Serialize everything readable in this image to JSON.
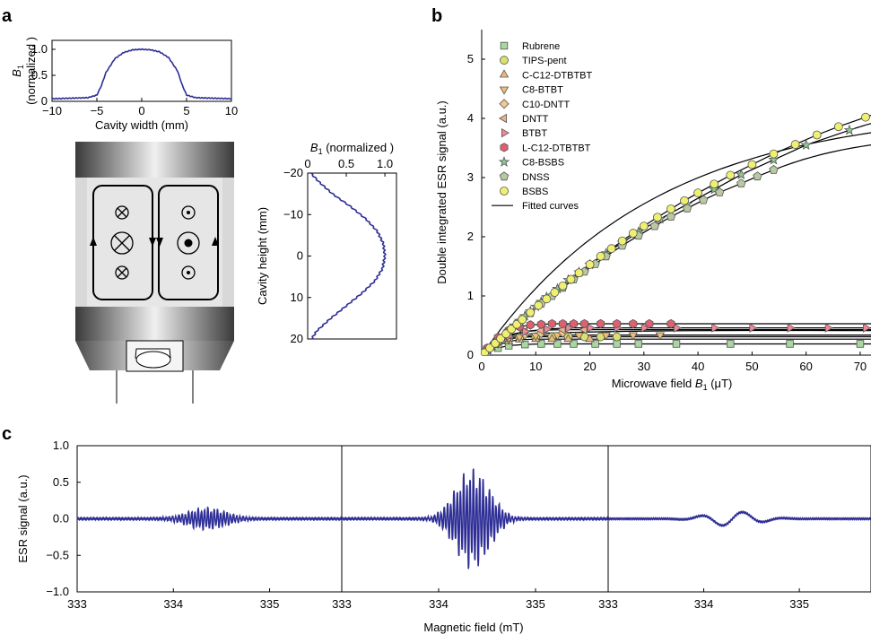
{
  "chart_data": [
    {
      "panel": "a",
      "type": "line",
      "id": "a-top",
      "xlabel": "Cavity width (mm)",
      "ylabel_main": "B",
      "ylabel_sub": "1",
      "ylabel_line2": "(normalized )",
      "xlim": [
        -10,
        10
      ],
      "ylim": [
        0,
        1
      ],
      "xticks": [
        -10,
        -5,
        0,
        5,
        10
      ],
      "yticks": [
        0,
        0.5,
        1.0
      ],
      "ytick_labels": [
        "0",
        "0.5",
        "1.0"
      ],
      "x": [
        -10,
        -8,
        -6,
        -5,
        -4.5,
        -4,
        -3,
        -2,
        -1,
        0,
        1,
        2,
        3,
        4,
        4.5,
        5,
        6,
        8,
        10
      ],
      "y": [
        0.05,
        0.06,
        0.07,
        0.12,
        0.3,
        0.55,
        0.82,
        0.94,
        0.99,
        1.0,
        0.99,
        0.95,
        0.84,
        0.58,
        0.32,
        0.12,
        0.07,
        0.06,
        0.05
      ]
    },
    {
      "panel": "a",
      "type": "line",
      "id": "a-side",
      "xlabel_main": "B",
      "xlabel_sub": "1",
      "xlabel_rest": " (normalized )",
      "ylabel": "Cavity height (mm)",
      "xlim": [
        0,
        1.15
      ],
      "ylim": [
        -20,
        20
      ],
      "xticks": [
        0,
        0.5,
        1.0
      ],
      "xtick_labels": [
        "0",
        "0.5",
        "1.0"
      ],
      "yticks": [
        -20,
        -10,
        0,
        10,
        20
      ],
      "ytick_labels": [
        "-20",
        "-10",
        "0",
        "10",
        "20"
      ],
      "height": [
        -20,
        -18,
        -15,
        -12,
        -9,
        -6,
        -3,
        0,
        3,
        6,
        9,
        12,
        15,
        18,
        20
      ],
      "value": [
        0.04,
        0.14,
        0.32,
        0.55,
        0.75,
        0.9,
        0.98,
        1.0,
        0.97,
        0.87,
        0.7,
        0.5,
        0.3,
        0.12,
        0.05
      ]
    },
    {
      "panel": "b",
      "type": "scatter",
      "id": "b",
      "xlabel_main": "Microwave field ",
      "xlabel_var": "B",
      "xlabel_sub": "1",
      "xlabel_unit": " (μT)",
      "ylabel": "Double integrated ESR signal (a.u.)",
      "xlim": [
        0,
        72
      ],
      "ylim": [
        0,
        5.5
      ],
      "xticks": [
        0,
        10,
        20,
        30,
        40,
        50,
        60,
        70
      ],
      "yticks": [
        0,
        1,
        2,
        3,
        4,
        5
      ],
      "series": [
        {
          "name": "Rubrene",
          "marker": "square",
          "color": "#a8d8a0",
          "x": [
            1,
            3,
            5,
            8,
            11,
            14,
            17,
            21,
            25,
            29,
            36,
            46,
            57,
            70
          ],
          "y": [
            0.05,
            0.12,
            0.16,
            0.18,
            0.19,
            0.19,
            0.19,
            0.19,
            0.19,
            0.19,
            0.19,
            0.19,
            0.19,
            0.19
          ]
        },
        {
          "name": "TIPS-pent",
          "marker": "circle",
          "color": "#d8e070",
          "x": [
            1,
            3,
            5,
            7,
            10,
            13,
            16,
            19,
            22,
            25
          ],
          "y": [
            0.08,
            0.2,
            0.27,
            0.3,
            0.31,
            0.31,
            0.31,
            0.31,
            0.31,
            0.31
          ]
        },
        {
          "name": "C-C12-DTBTBT",
          "marker": "triangle-up",
          "color": "#f0b878",
          "x": [
            1,
            3,
            5,
            7,
            10,
            13,
            16,
            20
          ],
          "y": [
            0.07,
            0.17,
            0.23,
            0.26,
            0.27,
            0.27,
            0.27,
            0.27
          ]
        },
        {
          "name": "C8-BTBT",
          "marker": "triangle-down",
          "color": "#f0c070",
          "x": [
            1,
            3,
            5,
            7,
            10,
            14,
            18,
            23,
            28,
            33
          ],
          "y": [
            0.08,
            0.2,
            0.27,
            0.31,
            0.33,
            0.34,
            0.34,
            0.34,
            0.34,
            0.34
          ]
        },
        {
          "name": "C10-DNTT",
          "marker": "diamond",
          "color": "#f5c890",
          "x": [
            1,
            3,
            5,
            8,
            11,
            15
          ],
          "y": [
            0.08,
            0.22,
            0.3,
            0.35,
            0.37,
            0.38
          ]
        },
        {
          "name": "DNTT",
          "marker": "triangle-left",
          "color": "#f0b090",
          "x": [
            1,
            3,
            5,
            8,
            11,
            15,
            19
          ],
          "y": [
            0.1,
            0.25,
            0.34,
            0.4,
            0.42,
            0.43,
            0.43
          ]
        },
        {
          "name": "BTBT",
          "marker": "triangle-right",
          "color": "#f08898",
          "x": [
            2,
            5,
            8,
            12,
            16,
            20,
            25,
            30,
            36,
            43,
            50,
            57,
            64,
            71
          ],
          "y": [
            0.15,
            0.32,
            0.4,
            0.44,
            0.46,
            0.46,
            0.46,
            0.46,
            0.46,
            0.46,
            0.46,
            0.46,
            0.46,
            0.46
          ]
        },
        {
          "name": "L-C12-DTBTBT",
          "marker": "hexagon",
          "color": "#e06070",
          "x": [
            1,
            3,
            5,
            7,
            9,
            11,
            13,
            15,
            17,
            19,
            22,
            25,
            28,
            31,
            35
          ],
          "y": [
            0.12,
            0.3,
            0.42,
            0.48,
            0.51,
            0.52,
            0.53,
            0.53,
            0.53,
            0.53,
            0.53,
            0.53,
            0.53,
            0.53,
            0.53
          ]
        },
        {
          "name": "C8-BSBS",
          "marker": "star",
          "color": "#90c890",
          "x": [
            1,
            2,
            3,
            4,
            5,
            6,
            7,
            8,
            9,
            10,
            11,
            12,
            14,
            16,
            18,
            20,
            23,
            26,
            29,
            33,
            38,
            43,
            48,
            54,
            60,
            68
          ],
          "y": [
            0.08,
            0.16,
            0.25,
            0.33,
            0.41,
            0.5,
            0.58,
            0.66,
            0.74,
            0.82,
            0.9,
            0.98,
            1.12,
            1.27,
            1.4,
            1.53,
            1.72,
            1.9,
            2.08,
            2.3,
            2.55,
            2.8,
            3.05,
            3.3,
            3.55,
            3.8
          ]
        },
        {
          "name": "DNSS",
          "marker": "pentagon",
          "color": "#b8c8a0",
          "x": [
            1,
            3,
            5,
            7,
            9,
            11,
            13,
            15,
            17,
            19,
            21,
            23,
            26,
            29,
            32,
            35,
            38,
            41,
            44,
            48,
            51,
            54
          ],
          "y": [
            0.08,
            0.24,
            0.4,
            0.56,
            0.71,
            0.87,
            1.0,
            1.14,
            1.28,
            1.41,
            1.54,
            1.67,
            1.85,
            2.02,
            2.18,
            2.34,
            2.48,
            2.62,
            2.75,
            2.9,
            3.02,
            3.13
          ]
        },
        {
          "name": "BSBS",
          "marker": "circle",
          "color": "#f0f070",
          "x": [
            0.5,
            1.5,
            2.5,
            3.5,
            4.5,
            5.5,
            6.5,
            7.5,
            9,
            10.5,
            12,
            13.5,
            15,
            16.5,
            18,
            20,
            22,
            24,
            26,
            28,
            30,
            32.5,
            35,
            37.5,
            40,
            43,
            46,
            50,
            54,
            58,
            62,
            66,
            71
          ],
          "y": [
            0.04,
            0.12,
            0.2,
            0.28,
            0.36,
            0.44,
            0.52,
            0.6,
            0.72,
            0.84,
            0.95,
            1.06,
            1.17,
            1.28,
            1.39,
            1.53,
            1.67,
            1.8,
            1.93,
            2.06,
            2.18,
            2.33,
            2.47,
            2.61,
            2.74,
            2.89,
            3.04,
            3.22,
            3.4,
            3.56,
            3.72,
            3.86,
            4.02
          ]
        }
      ],
      "fit_label": "Fitted curves"
    },
    {
      "panel": "c",
      "type": "line",
      "id": "c",
      "xlabel": "Magnetic field (mT)",
      "ylabel": "ESR signal (a.u.)",
      "ylim": [
        -1.0,
        1.0
      ],
      "yticks": [
        -1.0,
        -0.5,
        0.0,
        0.5,
        1.0
      ],
      "ytick_labels": [
        "−1.0",
        "−0.5",
        "0.0",
        "0.5",
        "1.0"
      ],
      "subplots": [
        {
          "xlim": [
            333,
            335.75
          ],
          "xticks": [
            333,
            334,
            335
          ],
          "center": 334.35,
          "width": 0.3,
          "amp": 0.16,
          "freq": 60,
          "baseline_wobble": 0.0
        },
        {
          "xlim": [
            333,
            335.75
          ],
          "xticks": [
            333,
            334,
            335
          ],
          "center": 334.35,
          "width": 0.25,
          "amp": 0.72,
          "freq": 60,
          "baseline_wobble": 0.0
        },
        {
          "xlim": [
            333,
            335.75
          ],
          "xticks": [
            333,
            334,
            335
          ],
          "center": 334.3,
          "width": 0.35,
          "amp": 0.1,
          "freq": 14,
          "baseline_wobble": 0.0
        }
      ]
    }
  ],
  "panel_labels": {
    "a": "a",
    "b": "b",
    "c": "c"
  }
}
